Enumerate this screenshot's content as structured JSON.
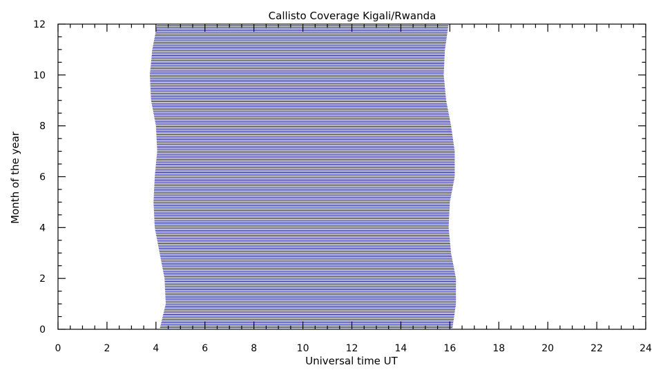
{
  "chart_data": {
    "type": "line",
    "title": "Callisto Coverage Kigali/Rwanda",
    "xlabel": "Universal time UT",
    "ylabel": "Month of the year",
    "xlim": [
      0,
      24
    ],
    "ylim": [
      0,
      12
    ],
    "x_ticks": [
      0,
      2,
      4,
      6,
      8,
      10,
      12,
      14,
      16,
      18,
      20,
      22,
      24
    ],
    "y_ticks": [
      0,
      2,
      4,
      6,
      8,
      10,
      12
    ],
    "x_minor_step": 0.5,
    "y_minor_step": 0.5,
    "line_color": "#00008b",
    "grid": false,
    "series": [
      {
        "month": [
          0,
          1,
          2,
          3,
          4,
          5,
          6,
          7,
          8,
          9,
          10,
          11,
          12
        ],
        "start_ut": [
          4.15,
          4.4,
          4.35,
          4.15,
          3.95,
          3.9,
          3.95,
          4.05,
          4.0,
          3.8,
          3.75,
          3.85,
          4.05
        ],
        "end_ut": [
          16.1,
          16.25,
          16.25,
          16.05,
          15.95,
          16.0,
          16.2,
          16.2,
          16.05,
          15.85,
          15.75,
          15.8,
          15.95
        ]
      }
    ]
  }
}
